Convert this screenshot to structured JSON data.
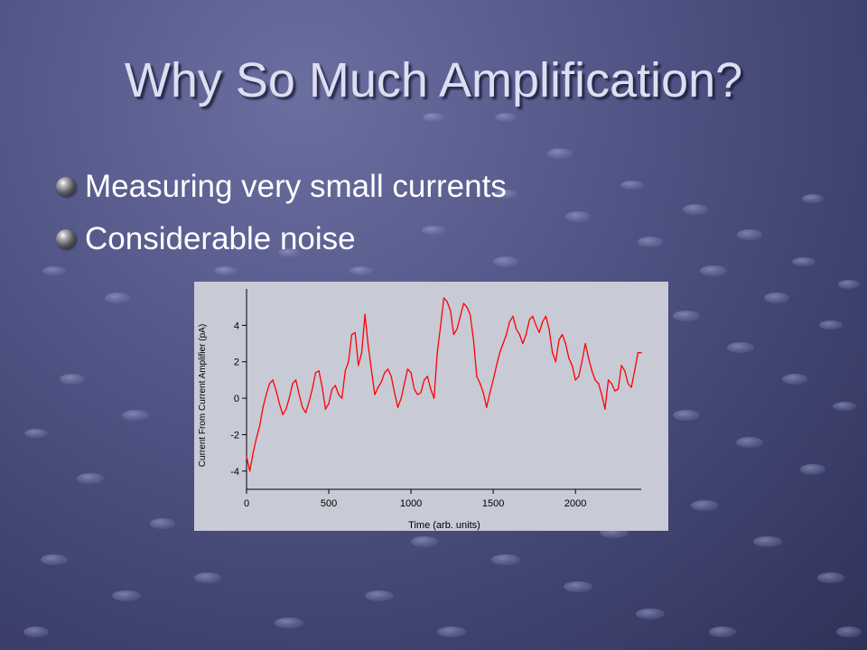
{
  "slide": {
    "title": "Why So Much Amplification?",
    "bullets": [
      {
        "text": "Measuring very small currents",
        "icon": "sphere-bullet-icon"
      },
      {
        "text": "Considerable noise",
        "icon": "sphere-bullet-icon"
      }
    ]
  },
  "colors": {
    "background": "#4a4e7e",
    "title": "#dcdff2",
    "bullet_text": "#ffffff",
    "chart_panel": "#c8cad6",
    "trace": "#ff0000"
  },
  "chart_data": {
    "type": "line",
    "title": "",
    "xlabel": "Time (arb. units)",
    "ylabel": "Current From Current Amplifier (pA)",
    "xlim": [
      0,
      2400
    ],
    "ylim": [
      -5,
      6
    ],
    "x_ticks": [
      0,
      500,
      1000,
      1500,
      2000
    ],
    "y_ticks": [
      -4,
      -2,
      0,
      2,
      4
    ],
    "grid": false,
    "legend": "none",
    "series": [
      {
        "color": "#ff0000",
        "x": [
          0,
          20,
          40,
          60,
          80,
          100,
          120,
          140,
          160,
          180,
          200,
          220,
          240,
          260,
          280,
          300,
          320,
          340,
          360,
          380,
          400,
          420,
          440,
          460,
          480,
          500,
          520,
          540,
          560,
          580,
          600,
          620,
          640,
          660,
          680,
          700,
          720,
          740,
          760,
          780,
          800,
          820,
          840,
          860,
          880,
          900,
          920,
          940,
          960,
          980,
          1000,
          1020,
          1040,
          1060,
          1080,
          1100,
          1120,
          1140,
          1160,
          1180,
          1200,
          1220,
          1240,
          1260,
          1280,
          1300,
          1320,
          1340,
          1360,
          1380,
          1400,
          1420,
          1440,
          1460,
          1480,
          1500,
          1520,
          1540,
          1560,
          1580,
          1600,
          1620,
          1640,
          1660,
          1680,
          1700,
          1720,
          1740,
          1760,
          1780,
          1800,
          1820,
          1840,
          1860,
          1880,
          1900,
          1920,
          1940,
          1960,
          1980,
          2000,
          2020,
          2040,
          2060,
          2080,
          2100,
          2120,
          2140,
          2160,
          2180,
          2200,
          2220,
          2240,
          2260,
          2280,
          2300,
          2320,
          2340,
          2360,
          2380,
          2400
        ],
        "y": [
          -3.2,
          -4.0,
          -3.0,
          -2.2,
          -1.5,
          -0.5,
          0.2,
          0.8,
          1.0,
          0.4,
          -0.3,
          -0.9,
          -0.6,
          0.0,
          0.8,
          1.0,
          0.2,
          -0.5,
          -0.8,
          -0.2,
          0.5,
          1.4,
          1.5,
          0.6,
          -0.6,
          -0.3,
          0.5,
          0.7,
          0.2,
          0.0,
          1.5,
          2.0,
          3.5,
          3.6,
          1.8,
          2.5,
          4.6,
          2.9,
          1.5,
          0.2,
          0.6,
          0.9,
          1.4,
          1.6,
          1.2,
          0.3,
          -0.5,
          0.0,
          0.8,
          1.6,
          1.4,
          0.5,
          0.2,
          0.3,
          1.0,
          1.2,
          0.5,
          0.0,
          2.5,
          4.0,
          5.5,
          5.3,
          4.8,
          3.5,
          3.8,
          4.5,
          5.2,
          5.0,
          4.6,
          3.2,
          1.2,
          0.8,
          0.3,
          -0.5,
          0.3,
          1.0,
          1.8,
          2.5,
          3.0,
          3.5,
          4.2,
          4.5,
          3.8,
          3.5,
          3.0,
          3.5,
          4.3,
          4.5,
          4.0,
          3.6,
          4.2,
          4.5,
          3.8,
          2.5,
          2.0,
          3.2,
          3.5,
          3.0,
          2.2,
          1.8,
          1.0,
          1.2,
          2.0,
          3.0,
          2.2,
          1.5,
          1.0,
          0.8,
          0.2,
          -0.6,
          1.0,
          0.8,
          0.4,
          0.5,
          1.8,
          1.5,
          0.8,
          0.6,
          1.5,
          2.5,
          2.5
        ]
      }
    ]
  }
}
